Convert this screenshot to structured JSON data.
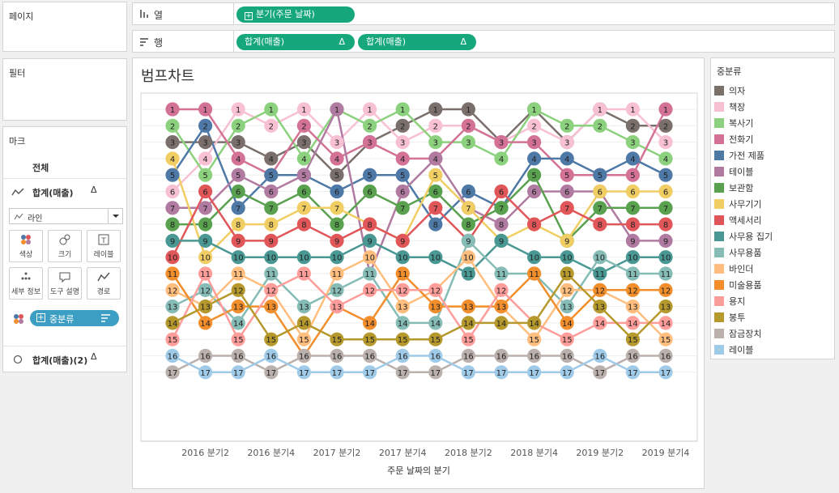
{
  "left_panel": {
    "pages_title": "페이지",
    "filters_title": "필터",
    "marks": {
      "title": "마크",
      "all_label": "전체",
      "measure1": "합계(매출)",
      "measure2": "합계(매출)(2)",
      "delta": "Δ",
      "mark_type": "라인",
      "buttons": [
        "색상",
        "크기",
        "레이블",
        "세부 정보",
        "도구 설명",
        "경로"
      ],
      "color_pill": "중분류"
    }
  },
  "shelves": {
    "columns_label": "열",
    "rows_label": "행",
    "columns_pill": "분기(주문 날짜)",
    "rows_pills": [
      "합계(매출)",
      "합계(매출)"
    ]
  },
  "legend": {
    "title": "중분류",
    "items": [
      {
        "name": "의자",
        "color": "#7a6f6b"
      },
      {
        "name": "책장",
        "color": "#f7c0d3"
      },
      {
        "name": "복사기",
        "color": "#8cd17d"
      },
      {
        "name": "전화기",
        "color": "#d37295"
      },
      {
        "name": "가전 제품",
        "color": "#4e79a7"
      },
      {
        "name": "테이블",
        "color": "#b07aa1"
      },
      {
        "name": "보관함",
        "color": "#59a14f"
      },
      {
        "name": "사무기기",
        "color": "#f1ce63"
      },
      {
        "name": "액세서리",
        "color": "#e15759"
      },
      {
        "name": "사무용 집기",
        "color": "#499894"
      },
      {
        "name": "사무용품",
        "color": "#86bcb6"
      },
      {
        "name": "바인더",
        "color": "#ffbe7d"
      },
      {
        "name": "미술용품",
        "color": "#f28e2b"
      },
      {
        "name": "용지",
        "color": "#ff9d9a"
      },
      {
        "name": "봉투",
        "color": "#b6992d"
      },
      {
        "name": "잠금장치",
        "color": "#bab0ac"
      },
      {
        "name": "레이블",
        "color": "#a0cbe8"
      }
    ]
  },
  "chart_data": {
    "type": "line",
    "title": "범프차트",
    "xlabel": "주문 날짜의 분기",
    "ylabel": "",
    "x": [
      "2016 분기1",
      "2016 분기2",
      "2016 분기3",
      "2016 분기4",
      "2017 분기1",
      "2017 분기2",
      "2017 분기3",
      "2017 분기4",
      "2018 분기1",
      "2018 분기2",
      "2018 분기3",
      "2018 분기4",
      "2019 분기1",
      "2019 분기2",
      "2019 분기3",
      "2019 분기4"
    ],
    "x_tick_labels": [
      "2016 분기2",
      "2016 분기4",
      "2017 분기2",
      "2017 분기4",
      "2018 분기2",
      "2018 분기4",
      "2019 분기2",
      "2019 분기4"
    ],
    "ylim": [
      1,
      17
    ],
    "y_reversed": true,
    "series": [
      {
        "name": "의자",
        "values": [
          3,
          3,
          3,
          4,
          3,
          5,
          3,
          2,
          1,
          1,
          3,
          1,
          3,
          1,
          2,
          2
        ]
      },
      {
        "name": "책장",
        "values": [
          6,
          4,
          1,
          2,
          1,
          3,
          1,
          3,
          2,
          2,
          3,
          2,
          3,
          1,
          1,
          3
        ]
      },
      {
        "name": "복사기",
        "values": [
          2,
          5,
          2,
          1,
          4,
          1,
          2,
          1,
          3,
          3,
          4,
          1,
          2,
          2,
          3,
          4
        ]
      },
      {
        "name": "전화기",
        "values": [
          1,
          1,
          4,
          5,
          2,
          4,
          3,
          4,
          4,
          2,
          3,
          3,
          5,
          5,
          5,
          1
        ]
      },
      {
        "name": "가전 제품",
        "values": [
          5,
          2,
          7,
          5,
          5,
          6,
          5,
          5,
          8,
          6,
          7,
          4,
          4,
          5,
          4,
          5
        ]
      },
      {
        "name": "테이블",
        "values": [
          7,
          7,
          5,
          6,
          5,
          1,
          11,
          6,
          4,
          7,
          8,
          6,
          6,
          6,
          9,
          9
        ]
      },
      {
        "name": "보관함",
        "values": [
          8,
          8,
          6,
          7,
          6,
          8,
          6,
          7,
          6,
          8,
          7,
          5,
          9,
          7,
          7,
          7
        ]
      },
      {
        "name": "사무기기",
        "values": [
          4,
          10,
          8,
          8,
          7,
          7,
          8,
          9,
          5,
          7,
          9,
          8,
          9,
          6,
          6,
          6
        ]
      },
      {
        "name": "액세서리",
        "values": [
          10,
          6,
          9,
          9,
          8,
          9,
          8,
          9,
          7,
          9,
          6,
          8,
          7,
          8,
          8,
          8
        ]
      },
      {
        "name": "사무용 집기",
        "values": [
          9,
          9,
          10,
          10,
          10,
          10,
          9,
          10,
          10,
          11,
          9,
          10,
          10,
          11,
          10,
          10
        ]
      },
      {
        "name": "사무용품",
        "values": [
          13,
          12,
          14,
          11,
          13,
          12,
          11,
          14,
          14,
          9,
          11,
          11,
          13,
          10,
          11,
          11
        ]
      },
      {
        "name": "바인더",
        "values": [
          12,
          13,
          11,
          12,
          15,
          11,
          10,
          13,
          12,
          10,
          13,
          15,
          12,
          12,
          13,
          15
        ]
      },
      {
        "name": "미술용품",
        "values": [
          11,
          14,
          13,
          13,
          16,
          13,
          14,
          11,
          13,
          13,
          13,
          11,
          14,
          12,
          12,
          12
        ]
      },
      {
        "name": "용지",
        "values": [
          15,
          11,
          15,
          12,
          11,
          13,
          12,
          12,
          12,
          15,
          12,
          14,
          15,
          14,
          14,
          14
        ]
      },
      {
        "name": "봉투",
        "values": [
          14,
          13,
          12,
          15,
          14,
          15,
          15,
          15,
          15,
          14,
          14,
          14,
          11,
          13,
          15,
          13
        ]
      },
      {
        "name": "잠금장치",
        "values": [
          17,
          16,
          16,
          17,
          16,
          16,
          16,
          17,
          17,
          16,
          16,
          16,
          16,
          17,
          16,
          16
        ]
      },
      {
        "name": "레이블",
        "values": [
          16,
          17,
          17,
          16,
          17,
          17,
          17,
          16,
          16,
          17,
          17,
          17,
          17,
          16,
          17,
          17
        ]
      }
    ]
  }
}
